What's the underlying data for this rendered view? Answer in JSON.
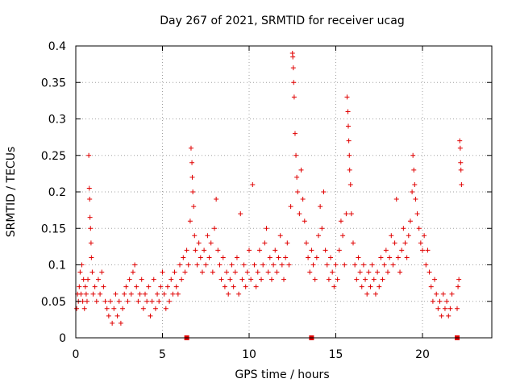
{
  "chart_data": {
    "type": "scatter",
    "title": "Day 267 of 2021, SRMTID for receiver ucag",
    "xlabel": "GPS time / hours",
    "ylabel": "SRMTID / TECUs",
    "xlim": [
      0,
      24
    ],
    "ylim": [
      0,
      0.4
    ],
    "x_ticks": [
      0,
      5,
      10,
      15,
      20
    ],
    "y_ticks": [
      0,
      0.05,
      0.1,
      0.15,
      0.2,
      0.25,
      0.3,
      0.35,
      0.4
    ],
    "x_tick_labels": [
      "0",
      "5",
      "10",
      "15",
      "20"
    ],
    "y_tick_labels": [
      "0",
      "0.05",
      "0.1",
      "0.15",
      "0.2",
      "0.25",
      "0.3",
      "0.35",
      "0.4"
    ],
    "grid": true,
    "marker": "+",
    "color": "#e00000",
    "gap_markers_x": [
      6.4,
      13.6,
      22.0
    ],
    "series": [
      {
        "name": "SRMTID",
        "points": [
          [
            0.05,
            0.04
          ],
          [
            0.1,
            0.06
          ],
          [
            0.15,
            0.05
          ],
          [
            0.2,
            0.07
          ],
          [
            0.25,
            0.09
          ],
          [
            0.3,
            0.06
          ],
          [
            0.35,
            0.1
          ],
          [
            0.4,
            0.05
          ],
          [
            0.45,
            0.08
          ],
          [
            0.5,
            0.04
          ],
          [
            0.55,
            0.07
          ],
          [
            0.6,
            0.06
          ],
          [
            0.65,
            0.05
          ],
          [
            0.7,
            0.08
          ],
          [
            0.75,
            0.25
          ],
          [
            0.78,
            0.205
          ],
          [
            0.8,
            0.19
          ],
          [
            0.82,
            0.165
          ],
          [
            0.85,
            0.15
          ],
          [
            0.88,
            0.13
          ],
          [
            0.9,
            0.11
          ],
          [
            0.95,
            0.09
          ],
          [
            1.0,
            0.06
          ],
          [
            1.1,
            0.07
          ],
          [
            1.2,
            0.05
          ],
          [
            1.3,
            0.08
          ],
          [
            1.4,
            0.06
          ],
          [
            1.5,
            0.09
          ],
          [
            1.6,
            0.07
          ],
          [
            1.7,
            0.05
          ],
          [
            1.8,
            0.04
          ],
          [
            1.9,
            0.03
          ],
          [
            2.0,
            0.05
          ],
          [
            2.1,
            0.02
          ],
          [
            2.2,
            0.04
          ],
          [
            2.3,
            0.06
          ],
          [
            2.4,
            0.03
          ],
          [
            2.5,
            0.05
          ],
          [
            2.6,
            0.02
          ],
          [
            2.7,
            0.04
          ],
          [
            2.8,
            0.06
          ],
          [
            2.9,
            0.07
          ],
          [
            3.0,
            0.05
          ],
          [
            3.1,
            0.08
          ],
          [
            3.2,
            0.06
          ],
          [
            3.3,
            0.09
          ],
          [
            3.4,
            0.1
          ],
          [
            3.5,
            0.07
          ],
          [
            3.6,
            0.05
          ],
          [
            3.7,
            0.06
          ],
          [
            3.8,
            0.08
          ],
          [
            3.9,
            0.04
          ],
          [
            4.0,
            0.06
          ],
          [
            4.1,
            0.05
          ],
          [
            4.2,
            0.07
          ],
          [
            4.3,
            0.03
          ],
          [
            4.4,
            0.05
          ],
          [
            4.5,
            0.08
          ],
          [
            4.6,
            0.04
          ],
          [
            4.7,
            0.06
          ],
          [
            4.8,
            0.05
          ],
          [
            4.9,
            0.07
          ],
          [
            5.0,
            0.09
          ],
          [
            5.1,
            0.06
          ],
          [
            5.2,
            0.04
          ],
          [
            5.3,
            0.07
          ],
          [
            5.4,
            0.05
          ],
          [
            5.5,
            0.08
          ],
          [
            5.6,
            0.06
          ],
          [
            5.7,
            0.09
          ],
          [
            5.8,
            0.07
          ],
          [
            5.9,
            0.06
          ],
          [
            6.0,
            0.1
          ],
          [
            6.1,
            0.08
          ],
          [
            6.2,
            0.11
          ],
          [
            6.3,
            0.09
          ],
          [
            6.4,
            0.12
          ],
          [
            6.5,
            0.1
          ],
          [
            6.6,
            0.16
          ],
          [
            6.65,
            0.26
          ],
          [
            6.7,
            0.24
          ],
          [
            6.72,
            0.22
          ],
          [
            6.75,
            0.2
          ],
          [
            6.8,
            0.18
          ],
          [
            6.85,
            0.14
          ],
          [
            6.9,
            0.12
          ],
          [
            7.0,
            0.1
          ],
          [
            7.1,
            0.13
          ],
          [
            7.2,
            0.11
          ],
          [
            7.3,
            0.09
          ],
          [
            7.4,
            0.12
          ],
          [
            7.5,
            0.1
          ],
          [
            7.6,
            0.14
          ],
          [
            7.7,
            0.11
          ],
          [
            7.8,
            0.13
          ],
          [
            7.9,
            0.09
          ],
          [
            8.0,
            0.15
          ],
          [
            8.1,
            0.19
          ],
          [
            8.2,
            0.12
          ],
          [
            8.3,
            0.1
          ],
          [
            8.4,
            0.08
          ],
          [
            8.5,
            0.11
          ],
          [
            8.6,
            0.07
          ],
          [
            8.7,
            0.09
          ],
          [
            8.8,
            0.06
          ],
          [
            8.9,
            0.08
          ],
          [
            9.0,
            0.1
          ],
          [
            9.1,
            0.07
          ],
          [
            9.2,
            0.09
          ],
          [
            9.3,
            0.11
          ],
          [
            9.4,
            0.06
          ],
          [
            9.5,
            0.17
          ],
          [
            9.6,
            0.08
          ],
          [
            9.7,
            0.1
          ],
          [
            9.8,
            0.07
          ],
          [
            9.9,
            0.09
          ],
          [
            10.0,
            0.12
          ],
          [
            10.1,
            0.08
          ],
          [
            10.2,
            0.21
          ],
          [
            10.3,
            0.1
          ],
          [
            10.4,
            0.07
          ],
          [
            10.5,
            0.09
          ],
          [
            10.6,
            0.12
          ],
          [
            10.7,
            0.08
          ],
          [
            10.8,
            0.1
          ],
          [
            10.9,
            0.13
          ],
          [
            11.0,
            0.15
          ],
          [
            11.1,
            0.09
          ],
          [
            11.2,
            0.11
          ],
          [
            11.3,
            0.08
          ],
          [
            11.4,
            0.1
          ],
          [
            11.5,
            0.12
          ],
          [
            11.6,
            0.09
          ],
          [
            11.7,
            0.11
          ],
          [
            11.8,
            0.14
          ],
          [
            11.9,
            0.1
          ],
          [
            12.0,
            0.08
          ],
          [
            12.1,
            0.11
          ],
          [
            12.2,
            0.13
          ],
          [
            12.3,
            0.1
          ],
          [
            12.4,
            0.18
          ],
          [
            12.5,
            0.39
          ],
          [
            12.52,
            0.385
          ],
          [
            12.55,
            0.37
          ],
          [
            12.57,
            0.35
          ],
          [
            12.6,
            0.33
          ],
          [
            12.65,
            0.28
          ],
          [
            12.7,
            0.25
          ],
          [
            12.75,
            0.22
          ],
          [
            12.8,
            0.2
          ],
          [
            12.9,
            0.17
          ],
          [
            13.0,
            0.23
          ],
          [
            13.1,
            0.19
          ],
          [
            13.2,
            0.16
          ],
          [
            13.3,
            0.13
          ],
          [
            13.4,
            0.11
          ],
          [
            13.5,
            0.09
          ],
          [
            13.6,
            0.12
          ],
          [
            13.7,
            0.1
          ],
          [
            13.8,
            0.08
          ],
          [
            13.9,
            0.11
          ],
          [
            14.0,
            0.14
          ],
          [
            14.1,
            0.18
          ],
          [
            14.2,
            0.15
          ],
          [
            14.3,
            0.2
          ],
          [
            14.4,
            0.12
          ],
          [
            14.5,
            0.1
          ],
          [
            14.6,
            0.08
          ],
          [
            14.7,
            0.11
          ],
          [
            14.8,
            0.09
          ],
          [
            14.9,
            0.07
          ],
          [
            15.0,
            0.1
          ],
          [
            15.1,
            0.08
          ],
          [
            15.2,
            0.12
          ],
          [
            15.3,
            0.16
          ],
          [
            15.4,
            0.14
          ],
          [
            15.5,
            0.1
          ],
          [
            15.6,
            0.17
          ],
          [
            15.65,
            0.33
          ],
          [
            15.7,
            0.31
          ],
          [
            15.72,
            0.29
          ],
          [
            15.75,
            0.27
          ],
          [
            15.78,
            0.25
          ],
          [
            15.8,
            0.23
          ],
          [
            15.85,
            0.21
          ],
          [
            15.9,
            0.17
          ],
          [
            16.0,
            0.13
          ],
          [
            16.1,
            0.1
          ],
          [
            16.2,
            0.08
          ],
          [
            16.3,
            0.11
          ],
          [
            16.4,
            0.09
          ],
          [
            16.5,
            0.07
          ],
          [
            16.6,
            0.1
          ],
          [
            16.7,
            0.08
          ],
          [
            16.8,
            0.06
          ],
          [
            16.9,
            0.09
          ],
          [
            17.0,
            0.07
          ],
          [
            17.1,
            0.1
          ],
          [
            17.2,
            0.08
          ],
          [
            17.3,
            0.06
          ],
          [
            17.4,
            0.09
          ],
          [
            17.5,
            0.07
          ],
          [
            17.6,
            0.11
          ],
          [
            17.7,
            0.08
          ],
          [
            17.8,
            0.1
          ],
          [
            17.9,
            0.12
          ],
          [
            18.0,
            0.09
          ],
          [
            18.1,
            0.11
          ],
          [
            18.2,
            0.14
          ],
          [
            18.3,
            0.1
          ],
          [
            18.4,
            0.13
          ],
          [
            18.5,
            0.19
          ],
          [
            18.6,
            0.11
          ],
          [
            18.7,
            0.09
          ],
          [
            18.8,
            0.12
          ],
          [
            18.9,
            0.15
          ],
          [
            19.0,
            0.13
          ],
          [
            19.1,
            0.11
          ],
          [
            19.2,
            0.14
          ],
          [
            19.3,
            0.16
          ],
          [
            19.4,
            0.2
          ],
          [
            19.45,
            0.25
          ],
          [
            19.5,
            0.23
          ],
          [
            19.55,
            0.21
          ],
          [
            19.6,
            0.19
          ],
          [
            19.7,
            0.17
          ],
          [
            19.8,
            0.15
          ],
          [
            19.9,
            0.13
          ],
          [
            20.0,
            0.12
          ],
          [
            20.1,
            0.14
          ],
          [
            20.2,
            0.1
          ],
          [
            20.3,
            0.12
          ],
          [
            20.4,
            0.09
          ],
          [
            20.5,
            0.07
          ],
          [
            20.6,
            0.05
          ],
          [
            20.7,
            0.08
          ],
          [
            20.8,
            0.06
          ],
          [
            20.9,
            0.04
          ],
          [
            21.0,
            0.05
          ],
          [
            21.1,
            0.03
          ],
          [
            21.2,
            0.06
          ],
          [
            21.3,
            0.04
          ],
          [
            21.4,
            0.05
          ],
          [
            21.5,
            0.03
          ],
          [
            21.6,
            0.04
          ],
          [
            21.7,
            0.06
          ],
          [
            22.0,
            0.04
          ],
          [
            22.05,
            0.07
          ],
          [
            22.1,
            0.08
          ],
          [
            22.15,
            0.27
          ],
          [
            22.18,
            0.26
          ],
          [
            22.2,
            0.24
          ],
          [
            22.22,
            0.23
          ],
          [
            22.25,
            0.21
          ]
        ]
      }
    ]
  }
}
